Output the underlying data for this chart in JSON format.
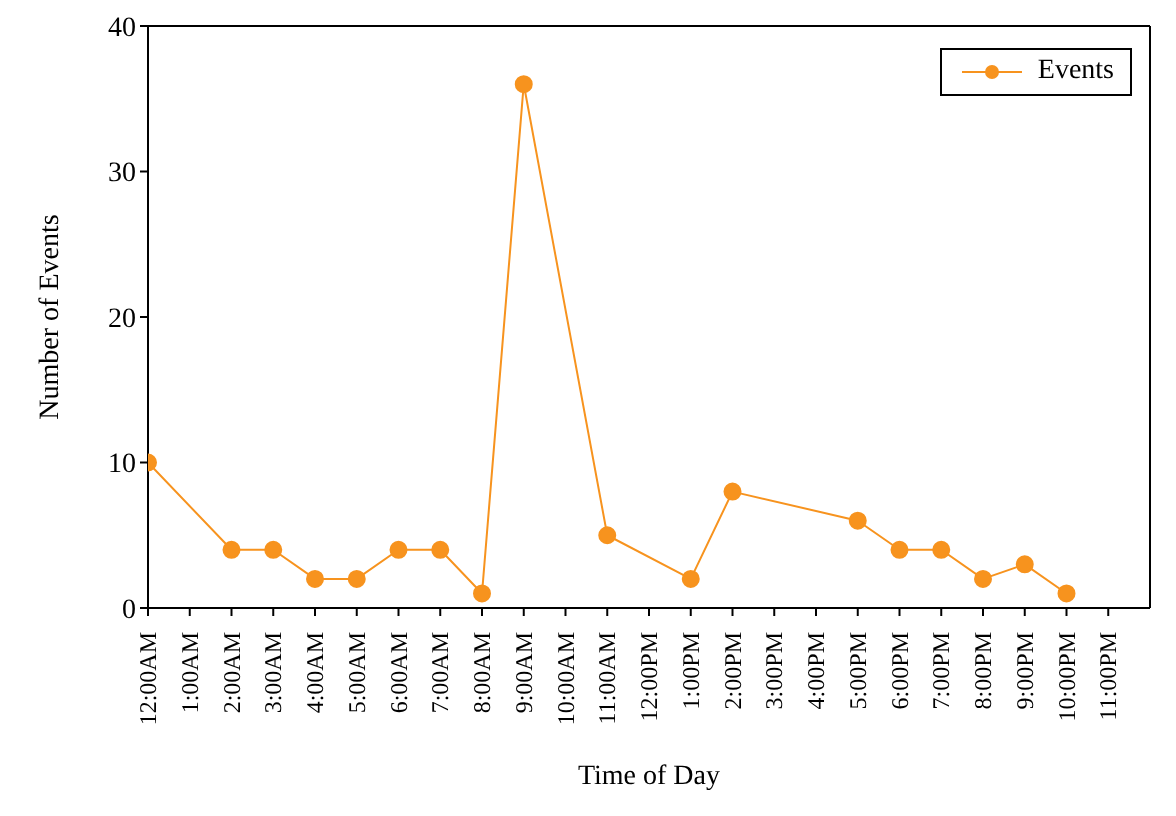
{
  "chart_data": {
    "type": "line",
    "xlabel": "Time of Day",
    "ylabel": "Number of Events",
    "xlim": [
      0,
      24
    ],
    "ylim": [
      0,
      40
    ],
    "yticks": [
      0,
      10,
      20,
      30,
      40
    ],
    "xticks": [
      {
        "value": 0,
        "label": "12:00AM"
      },
      {
        "value": 1,
        "label": "1:00AM"
      },
      {
        "value": 2,
        "label": "2:00AM"
      },
      {
        "value": 3,
        "label": "3:00AM"
      },
      {
        "value": 4,
        "label": "4:00AM"
      },
      {
        "value": 5,
        "label": "5:00AM"
      },
      {
        "value": 6,
        "label": "6:00AM"
      },
      {
        "value": 7,
        "label": "7:00AM"
      },
      {
        "value": 8,
        "label": "8:00AM"
      },
      {
        "value": 9,
        "label": "9:00AM"
      },
      {
        "value": 10,
        "label": "10:00AM"
      },
      {
        "value": 11,
        "label": "11:00AM"
      },
      {
        "value": 12,
        "label": "12:00PM"
      },
      {
        "value": 13,
        "label": "1:00PM"
      },
      {
        "value": 14,
        "label": "2:00PM"
      },
      {
        "value": 15,
        "label": "3:00PM"
      },
      {
        "value": 16,
        "label": "4:00PM"
      },
      {
        "value": 17,
        "label": "5:00PM"
      },
      {
        "value": 18,
        "label": "6:00PM"
      },
      {
        "value": 19,
        "label": "7:00PM"
      },
      {
        "value": 20,
        "label": "8:00PM"
      },
      {
        "value": 21,
        "label": "9:00PM"
      },
      {
        "value": 22,
        "label": "10:00PM"
      },
      {
        "value": 23,
        "label": "11:00PM"
      }
    ],
    "x": [
      0,
      2,
      3,
      4,
      5,
      6,
      7,
      8,
      9,
      11,
      13,
      14,
      17,
      18,
      19,
      20,
      21,
      22
    ],
    "series": [
      {
        "name": "Events",
        "color": "#f7931e",
        "values": [
          10,
          4,
          4,
          2,
          2,
          4,
          4,
          1,
          36,
          5,
          2,
          8,
          6,
          4,
          4,
          2,
          3,
          1
        ]
      }
    ],
    "legend": "top right",
    "marker": "circle",
    "grid": false
  }
}
